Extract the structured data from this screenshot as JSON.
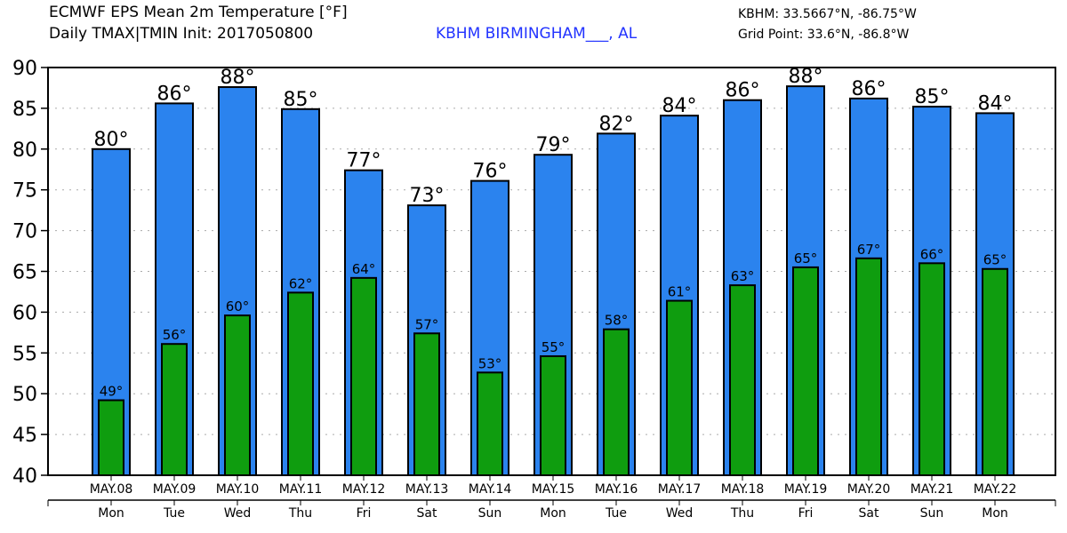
{
  "header": {
    "title_line1": "ECMWF EPS Mean 2m Temperature [°F]",
    "title_line2": "Daily TMAX|TMIN Init: 2017050800",
    "location": "KBHM BIRMINGHAM___, AL",
    "station_coord": "KBHM: 33.5667°N, -86.75°W",
    "grid_point": "Grid Point: 33.6°N, -86.8°W"
  },
  "chart_data": {
    "type": "bar",
    "title": "ECMWF EPS Mean 2m Temperature [°F]",
    "subtitle": "Daily TMAX|TMIN Init: 2017050800",
    "categories": [
      "MAY.08",
      "MAY.09",
      "MAY.10",
      "MAY.11",
      "MAY.12",
      "MAY.13",
      "MAY.14",
      "MAY.15",
      "MAY.16",
      "MAY.17",
      "MAY.18",
      "MAY.19",
      "MAY.20",
      "MAY.21",
      "MAY.22"
    ],
    "days": [
      "Mon",
      "Tue",
      "Wed",
      "Thu",
      "Fri",
      "Sat",
      "Sun",
      "Mon",
      "Tue",
      "Wed",
      "Thu",
      "Fri",
      "Sat",
      "Sun",
      "Mon"
    ],
    "series": [
      {
        "key": "TMAX",
        "color": "#2b83ee",
        "values": [
          80.0,
          85.6,
          87.6,
          84.9,
          77.4,
          73.1,
          76.1,
          79.3,
          81.9,
          84.1,
          86.0,
          87.7,
          86.2,
          85.2,
          84.4
        ],
        "labels": [
          "80°",
          "86°",
          "88°",
          "85°",
          "77°",
          "73°",
          "76°",
          "79°",
          "82°",
          "84°",
          "86°",
          "88°",
          "86°",
          "85°",
          "84°"
        ]
      },
      {
        "key": "TMIN",
        "color": "#0f9d0f",
        "values": [
          49.2,
          56.1,
          59.6,
          62.4,
          64.2,
          57.4,
          52.6,
          54.6,
          57.9,
          61.4,
          63.3,
          65.5,
          66.6,
          66.0,
          65.3
        ],
        "labels": [
          "49°",
          "56°",
          "60°",
          "62°",
          "64°",
          "57°",
          "53°",
          "55°",
          "58°",
          "61°",
          "63°",
          "65°",
          "67°",
          "66°",
          "65°"
        ]
      }
    ],
    "ylim": [
      40,
      90
    ],
    "yticks": [
      40,
      45,
      50,
      55,
      60,
      65,
      70,
      75,
      80,
      85,
      90
    ],
    "grid": "horizontal dotted",
    "xlabel": "",
    "ylabel": ""
  }
}
